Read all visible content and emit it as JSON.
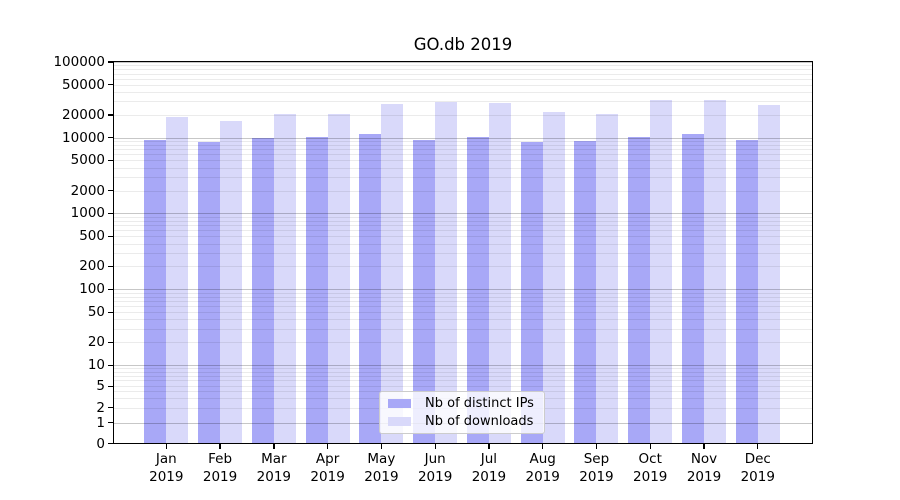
{
  "title": "GO.db 2019",
  "colors": {
    "distinct_ips": "#a8a8f7",
    "downloads": "#d9d9fa",
    "grid_major": "rgba(0,0,0,0.22)",
    "grid_minor": "rgba(0,0,0,0.08)",
    "axis": "#000000",
    "legend_border": "#cccccc",
    "legend_bg": "rgba(255,255,255,0.8)"
  },
  "legend": {
    "items": [
      {
        "label": "Nb of distinct IPs",
        "color_key": "distinct_ips"
      },
      {
        "label": "Nb of downloads",
        "color_key": "downloads"
      }
    ]
  },
  "chart_data": {
    "type": "bar",
    "title": "GO.db 2019",
    "categories": [
      "Jan",
      "Feb",
      "Mar",
      "Apr",
      "May",
      "Jun",
      "Jul",
      "Aug",
      "Sep",
      "Oct",
      "Nov",
      "Dec"
    ],
    "category_year": "2019",
    "series": [
      {
        "name": "Nb of distinct IPs",
        "color_key": "distinct_ips",
        "values": [
          9400,
          8700,
          10000,
          10300,
          11200,
          9300,
          10100,
          8800,
          9100,
          10300,
          11200,
          9300
        ]
      },
      {
        "name": "Nb of downloads",
        "color_key": "downloads",
        "values": [
          18600,
          16500,
          20400,
          20800,
          27800,
          29500,
          28400,
          21800,
          20700,
          31100,
          31300,
          27200
        ]
      }
    ],
    "xlabel": "",
    "ylabel": "",
    "yscale": "symlog",
    "ylim": [
      0,
      100000
    ],
    "yticks": [
      0,
      1,
      2,
      5,
      10,
      20,
      50,
      100,
      200,
      500,
      1000,
      2000,
      5000,
      10000,
      20000,
      50000,
      100000
    ],
    "grid": true,
    "grid_on_top_of_bars": true,
    "legend_position": "lower center"
  }
}
